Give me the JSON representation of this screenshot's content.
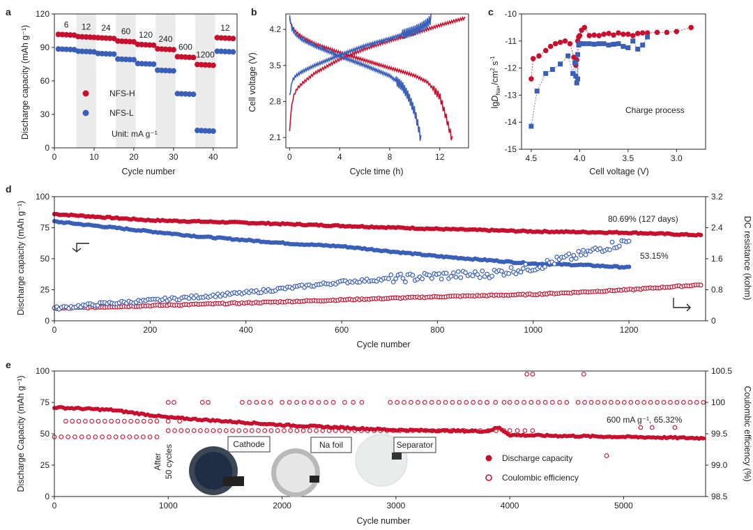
{
  "colors": {
    "red": "#c8102e",
    "blue": "#3a5fb8",
    "band": "#ebebeb"
  },
  "panel_labels": [
    "a",
    "b",
    "c",
    "d",
    "e"
  ],
  "chart_data": [
    {
      "panel": "a",
      "type": "scatter",
      "xlabel": "Cycle number",
      "ylabel": "Discharge capacity (mAh g⁻¹)",
      "xlim": [
        0,
        46
      ],
      "ylim": [
        0,
        120
      ],
      "xticks": [
        0,
        10,
        20,
        30,
        40
      ],
      "yticks": [
        0,
        30,
        60,
        90,
        120
      ],
      "rate_labels": [
        "6",
        "12",
        "24",
        "60",
        "120",
        "240",
        "600",
        "1200",
        "12"
      ],
      "legend": [
        "NFS-H",
        "NFS-L"
      ],
      "unit_note": "Unit: mA g⁻¹",
      "segments": [
        {
          "start": 1,
          "end": 5,
          "h": 101,
          "l": 88
        },
        {
          "start": 6,
          "end": 10,
          "h": 99,
          "l": 86
        },
        {
          "start": 11,
          "end": 15,
          "h": 98,
          "l": 84
        },
        {
          "start": 16,
          "end": 20,
          "h": 95,
          "l": 79
        },
        {
          "start": 21,
          "end": 25,
          "h": 92,
          "l": 75
        },
        {
          "start": 26,
          "end": 30,
          "h": 88,
          "l": 69
        },
        {
          "start": 31,
          "end": 35,
          "h": 81,
          "l": 48
        },
        {
          "start": 36,
          "end": 40,
          "h": 74,
          "l": 15
        },
        {
          "start": 41,
          "end": 45,
          "h": 98,
          "l": 86
        }
      ]
    },
    {
      "panel": "b",
      "type": "line",
      "xlabel": "Cycle time (h)",
      "ylabel": "Cell voltage (V)",
      "xlim": [
        -0.3,
        14.3
      ],
      "ylim": [
        1.9,
        4.5
      ],
      "xticks": [
        0,
        4,
        8,
        12
      ],
      "yticks": [
        2.1,
        2.8,
        3.5,
        4.2
      ],
      "series": [
        {
          "name": "NFS-H charge",
          "color": "red",
          "x": [
            0,
            0.1,
            0.3,
            0.6,
            1,
            2,
            4,
            6,
            8,
            10,
            11,
            12,
            13,
            14
          ],
          "y": [
            2.2,
            2.6,
            2.9,
            3.05,
            3.15,
            3.35,
            3.62,
            3.82,
            3.98,
            4.12,
            4.2,
            4.28,
            4.35,
            4.42
          ]
        },
        {
          "name": "NFS-H discharge",
          "color": "red",
          "x": [
            0,
            0.2,
            0.5,
            1,
            2,
            4,
            6,
            8,
            9,
            10,
            11,
            12,
            12.5,
            13
          ],
          "y": [
            4.4,
            4.25,
            4.15,
            4.05,
            3.92,
            3.75,
            3.6,
            3.45,
            3.38,
            3.3,
            3.18,
            2.9,
            2.5,
            2.05
          ]
        },
        {
          "name": "NFS-L charge",
          "color": "blue",
          "x": [
            0,
            0.2,
            0.5,
            1,
            2,
            4,
            6,
            8,
            9,
            10,
            10.5,
            11,
            11.3
          ],
          "y": [
            2.9,
            3.2,
            3.3,
            3.38,
            3.5,
            3.7,
            3.88,
            4.02,
            4.1,
            4.18,
            4.24,
            4.32,
            4.4
          ]
        },
        {
          "name": "NFS-L discharge",
          "color": "blue",
          "x": [
            0,
            0.2,
            0.5,
            1,
            2,
            4,
            6,
            8,
            9,
            9.5,
            10,
            10.3,
            10.5
          ],
          "y": [
            4.45,
            4.2,
            4.1,
            4.0,
            3.88,
            3.68,
            3.5,
            3.3,
            3.1,
            2.9,
            2.6,
            2.3,
            2.05
          ]
        }
      ]
    },
    {
      "panel": "c",
      "type": "scatter",
      "xlabel": "Cell voltage (V)",
      "ylabel": "lgD_Na+/cm² s⁻¹",
      "ylabel_parts": [
        "lg",
        "D",
        "Na+",
        "/cm",
        "2",
        " s",
        "-1"
      ],
      "xlim": [
        4.6,
        2.7
      ],
      "ylim": [
        -15,
        -10
      ],
      "xticks": [
        4.5,
        4.0,
        3.5,
        3.0
      ],
      "yticks": [
        -10,
        -11,
        -12,
        -13,
        -14,
        -15
      ],
      "annotation": "Charge process",
      "series": [
        {
          "name": "NFS-H",
          "color": "red",
          "marker": "circle",
          "x": [
            4.5,
            4.48,
            4.42,
            4.35,
            4.3,
            4.25,
            4.2,
            4.15,
            4.1,
            4.06,
            4.04,
            4.03,
            4.02,
            4.01,
            4.0,
            3.98,
            3.95,
            3.9,
            3.85,
            3.8,
            3.75,
            3.7,
            3.65,
            3.6,
            3.55,
            3.5,
            3.45,
            3.4,
            3.35,
            3.3,
            3.2,
            3.1,
            3.0,
            2.85
          ],
          "y": [
            -12.4,
            -11.65,
            -11.55,
            -11.35,
            -11.2,
            -11.1,
            -11.05,
            -11.0,
            -11.1,
            -11.6,
            -11.9,
            -11.7,
            -11.0,
            -10.85,
            -10.8,
            -10.6,
            -10.5,
            -10.8,
            -10.78,
            -10.8,
            -10.75,
            -10.72,
            -10.78,
            -10.7,
            -10.75,
            -10.75,
            -10.8,
            -10.72,
            -10.7,
            -10.7,
            -10.68,
            -10.68,
            -10.65,
            -10.5
          ]
        },
        {
          "name": "NFS-L",
          "color": "blue",
          "marker": "square",
          "x": [
            4.5,
            4.44,
            4.35,
            4.28,
            4.2,
            4.12,
            4.07,
            4.05,
            4.04,
            4.03,
            4.02,
            4.02,
            4.01,
            4.0,
            3.98,
            3.95,
            3.9,
            3.85,
            3.8,
            3.75,
            3.7,
            3.65,
            3.6,
            3.55,
            3.5,
            3.45,
            3.4,
            3.35,
            3.3
          ],
          "y": [
            -14.15,
            -12.85,
            -12.2,
            -12.05,
            -11.85,
            -11.55,
            -12.2,
            -11.8,
            -12.3,
            -12.55,
            -11.5,
            -12.4,
            -11.15,
            -11.1,
            -11.1,
            -11.1,
            -11.1,
            -11.12,
            -11.1,
            -11.1,
            -11.15,
            -11.12,
            -11.1,
            -11.2,
            -11.25,
            -11.0,
            -11.3,
            -11.15,
            -10.85
          ]
        }
      ]
    },
    {
      "panel": "d",
      "type": "scatter",
      "xlabel": "Cycle number",
      "ylabel": "Discharge capacity (mAh g⁻¹)",
      "ylabel_right": "DC resistance (kohm)",
      "xlim": [
        0,
        1360
      ],
      "ylim": [
        0,
        100
      ],
      "ylim_right": [
        0,
        3.2
      ],
      "xticks": [
        0,
        200,
        400,
        600,
        800,
        1000,
        1200
      ],
      "yticks": [
        0,
        25,
        50,
        75,
        100
      ],
      "yticks_right": [
        "0",
        "0.8",
        "1.6",
        "2.4",
        "3.2"
      ],
      "annotations": [
        "80.69% (127 days)",
        "53.15%"
      ],
      "series": [
        {
          "name": "NFS-H capacity",
          "color": "red",
          "filled": true,
          "axis": "left",
          "n": 270,
          "x": [
            0,
            100,
            200,
            400,
            600,
            800,
            1000,
            1200,
            1350
          ],
          "y": [
            86,
            83.5,
            81,
            79,
            76.5,
            74,
            72,
            71,
            69
          ]
        },
        {
          "name": "NFS-L capacity",
          "color": "blue",
          "filled": true,
          "axis": "left",
          "n": 240,
          "x": [
            0,
            50,
            100,
            200,
            300,
            400,
            500,
            600,
            700,
            800,
            900,
            1000,
            1100,
            1200
          ],
          "y": [
            80,
            78,
            76,
            72,
            68,
            65,
            62,
            60,
            56,
            52,
            49,
            46,
            45,
            43
          ]
        },
        {
          "name": "NFS-H resistance",
          "color": "red",
          "filled": false,
          "axis": "right",
          "n": 270,
          "x": [
            0,
            200,
            400,
            600,
            800,
            1000,
            1200,
            1350
          ],
          "y": [
            0.32,
            0.39,
            0.46,
            0.54,
            0.62,
            0.68,
            0.8,
            0.93
          ]
        },
        {
          "name": "NFS-L resistance",
          "color": "blue",
          "filled": false,
          "axis": "right",
          "n": 240,
          "x": [
            0,
            100,
            200,
            300,
            400,
            500,
            600,
            700,
            800,
            900,
            1000,
            1050,
            1100,
            1150,
            1200
          ],
          "y": [
            0.32,
            0.44,
            0.52,
            0.62,
            0.72,
            0.86,
            1.0,
            1.08,
            1.16,
            1.2,
            1.38,
            1.55,
            1.7,
            1.9,
            2.05
          ]
        }
      ]
    },
    {
      "panel": "e",
      "type": "scatter",
      "xlabel": "Cycle number",
      "ylabel": "Discharge Capacity (mAh g⁻¹)",
      "ylabel_right": "Coulombic efficiency (%)",
      "xlim": [
        0,
        5720
      ],
      "ylim": [
        0,
        100
      ],
      "ylim_right": [
        98.5,
        100.5
      ],
      "xticks": [
        0,
        1000,
        2000,
        3000,
        4000,
        5000
      ],
      "yticks": [
        0,
        25,
        50,
        75,
        100
      ],
      "yticks_right": [
        "98.5",
        "99.0",
        "99.5",
        "100",
        "100.5"
      ],
      "annotation": "600 mA g⁻¹, 65.32%",
      "legend": [
        "Discharge capacity",
        "Coulombic efficiency"
      ],
      "photo_labels": [
        "Cathode",
        "Na foil",
        "Separator"
      ],
      "side_note": [
        "After",
        "50 cycles"
      ],
      "capacity": {
        "n": 300,
        "x": [
          0,
          500,
          1000,
          2000,
          3000,
          3800,
          3900,
          4000,
          5000,
          5700
        ],
        "y": [
          71,
          69,
          63,
          57,
          53,
          52,
          55,
          49,
          47.5,
          46.5
        ]
      },
      "efficiency_levels": [
        {
          "y": 100,
          "x_ranges": [
            [
              1000,
              1050
            ],
            [
              1300,
              1350
            ],
            [
              1650,
              1900
            ],
            [
              2000,
              2450
            ],
            [
              2550,
              2700
            ],
            [
              2950,
              3800
            ],
            [
              3800,
              3950
            ],
            [
              4000,
              4500
            ],
            [
              4600,
              5700
            ]
          ]
        },
        {
          "y": 99.7,
          "x_ranges": [
            [
              100,
              900
            ],
            [
              1000,
              1100
            ]
          ]
        },
        {
          "y": 99.55,
          "x_ranges": [
            [
              1000,
              3600
            ],
            [
              3600,
              3950
            ],
            [
              4000,
              4200
            ]
          ]
        },
        {
          "y": 99.45,
          "x_ranges": [
            [
              0,
              900
            ]
          ]
        }
      ],
      "efficiency_outliers": [
        [
          4150,
          100.45
        ],
        [
          4200,
          100.45
        ],
        [
          4650,
          100.45
        ],
        [
          4850,
          99.15
        ],
        [
          5150,
          99.6
        ],
        [
          5250,
          99.6
        ],
        [
          5450,
          99.6
        ]
      ]
    }
  ]
}
